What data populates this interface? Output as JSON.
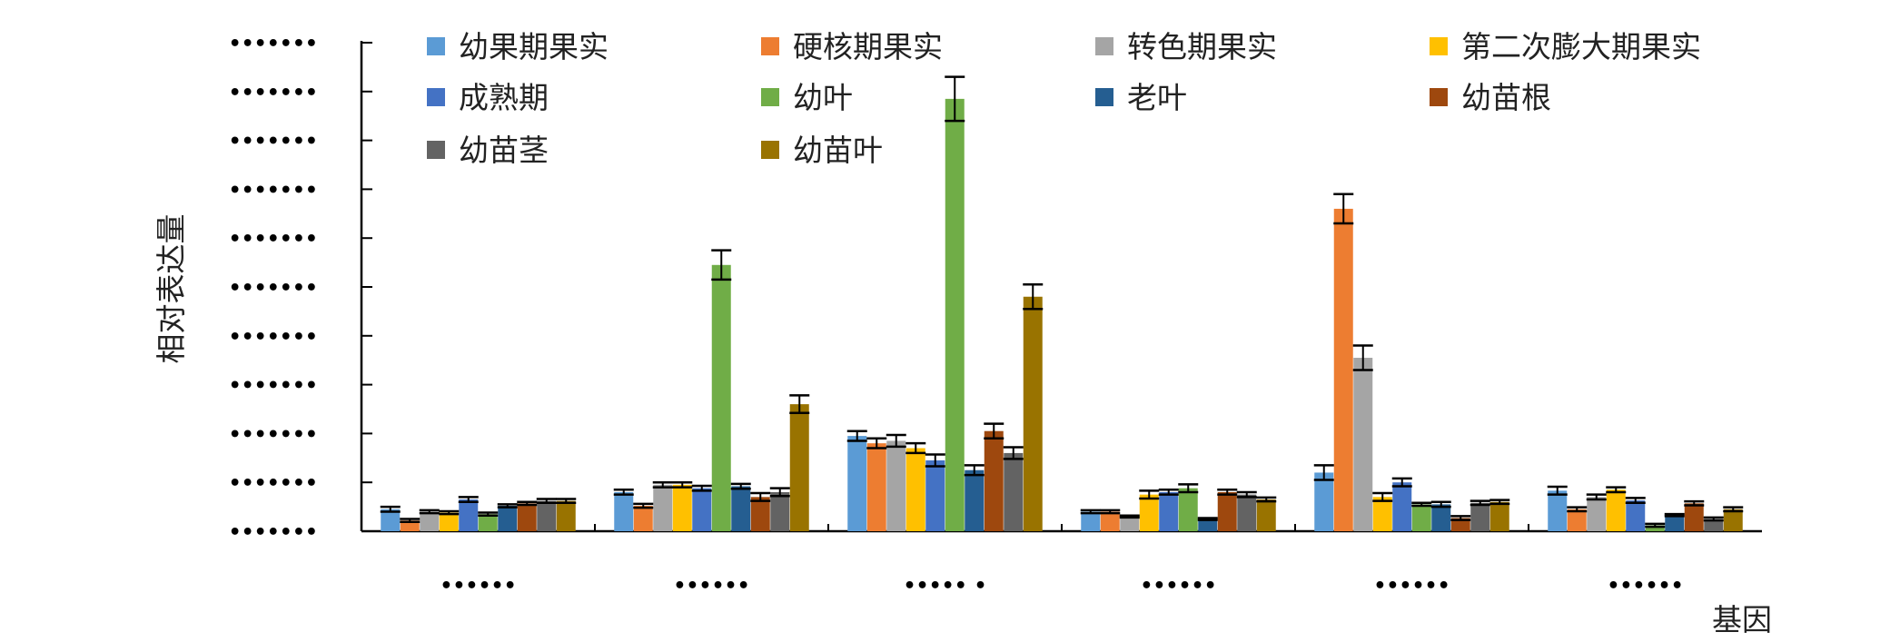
{
  "chart_data": {
    "type": "bar",
    "title": "",
    "xlabel": "基因",
    "ylabel": "相对表达量",
    "ylim": [
      0,
      10
    ],
    "y_ticks": [
      0,
      1,
      2,
      3,
      4,
      5,
      6,
      7,
      8,
      9,
      10
    ],
    "y_tick_labels": [
      "•••••••",
      "•••••••",
      "•••••••",
      "•••••••",
      "•••••••",
      "•••••••",
      "•••••••",
      "•••••••",
      "•••••••",
      "•••••••",
      "•••••••"
    ],
    "categories": [
      "••••••",
      "••••••",
      "••••• •",
      "••••••",
      "••••••",
      "••••••"
    ],
    "legend": {
      "position": "top",
      "columns": 4
    },
    "error_bars": true,
    "series": [
      {
        "name": "幼果期果实",
        "color": "#5b9bd5",
        "values": [
          0.45,
          0.8,
          1.95,
          0.4,
          1.2,
          0.83
        ],
        "errors": [
          0.05,
          0.05,
          0.1,
          0.03,
          0.15,
          0.08
        ]
      },
      {
        "name": "硬核期果实",
        "color": "#ed7d31",
        "values": [
          0.22,
          0.52,
          1.8,
          0.4,
          6.6,
          0.45
        ],
        "errors": [
          0.03,
          0.04,
          0.1,
          0.03,
          0.3,
          0.04
        ]
      },
      {
        "name": "转色期果实",
        "color": "#a5a5a5",
        "values": [
          0.4,
          0.95,
          1.85,
          0.3,
          3.55,
          0.7
        ],
        "errors": [
          0.03,
          0.05,
          0.12,
          0.02,
          0.25,
          0.05
        ]
      },
      {
        "name": "第二次膨大期果实",
        "color": "#ffc000",
        "values": [
          0.38,
          0.95,
          1.7,
          0.75,
          0.7,
          0.85
        ],
        "errors": [
          0.03,
          0.05,
          0.1,
          0.08,
          0.08,
          0.05
        ]
      },
      {
        "name": "成熟期",
        "color": "#4472c4",
        "values": [
          0.65,
          0.88,
          1.45,
          0.8,
          1.0,
          0.63
        ],
        "errors": [
          0.05,
          0.05,
          0.12,
          0.05,
          0.08,
          0.05
        ]
      },
      {
        "name": "幼叶",
        "color": "#70ad47",
        "values": [
          0.35,
          5.45,
          8.85,
          0.88,
          0.55,
          0.12
        ],
        "errors": [
          0.03,
          0.3,
          0.45,
          0.08,
          0.03,
          0.03
        ]
      },
      {
        "name": "老叶",
        "color": "#255e91",
        "values": [
          0.52,
          0.92,
          1.25,
          0.25,
          0.55,
          0.33
        ],
        "errors": [
          0.03,
          0.05,
          0.1,
          0.02,
          0.05,
          0.02
        ]
      },
      {
        "name": "幼苗根",
        "color": "#9e480e",
        "values": [
          0.57,
          0.7,
          2.05,
          0.8,
          0.27,
          0.57
        ],
        "errors": [
          0.03,
          0.08,
          0.15,
          0.05,
          0.04,
          0.04
        ]
      },
      {
        "name": "幼苗茎",
        "color": "#636363",
        "values": [
          0.62,
          0.8,
          1.6,
          0.75,
          0.58,
          0.25
        ],
        "errors": [
          0.04,
          0.08,
          0.12,
          0.05,
          0.04,
          0.03
        ]
      },
      {
        "name": "幼苗叶",
        "color": "#997300",
        "values": [
          0.62,
          2.6,
          4.8,
          0.65,
          0.6,
          0.45
        ],
        "errors": [
          0.04,
          0.18,
          0.25,
          0.04,
          0.04,
          0.04
        ]
      }
    ]
  }
}
